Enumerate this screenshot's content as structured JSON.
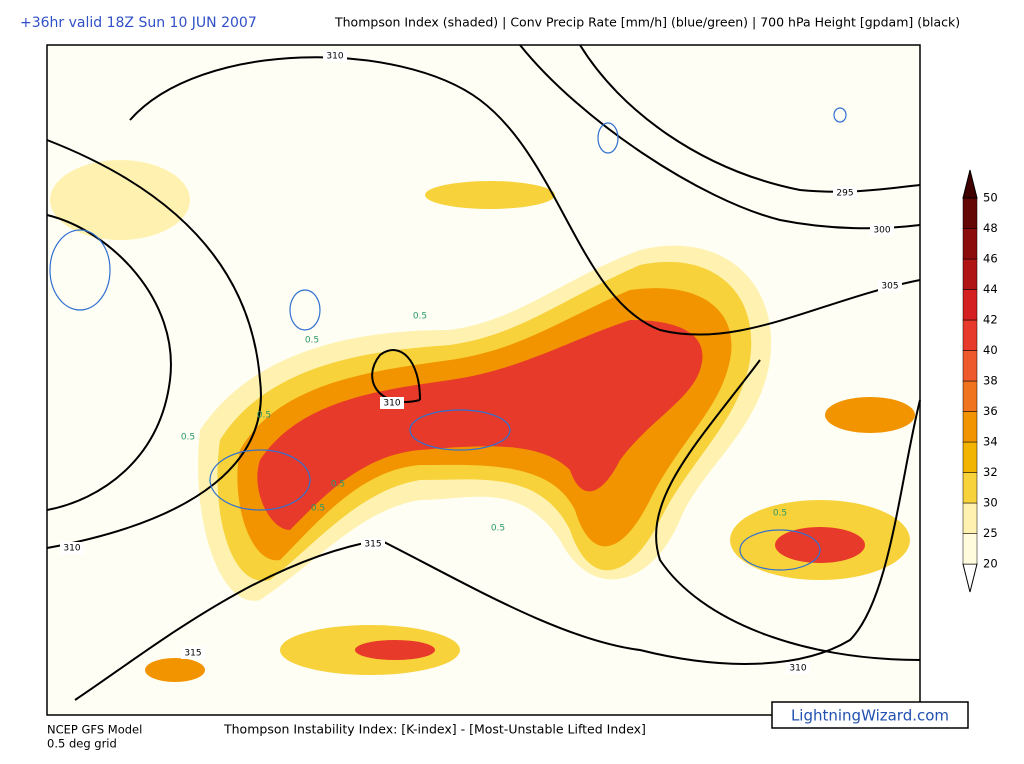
{
  "header": {
    "valid_time": "+36hr valid 18Z Sun 10 JUN 2007",
    "fields": "Thompson Index (shaded) | Conv Precip Rate [mm/h] (blue/green) | 700 hPa Height [gpdam] (black)"
  },
  "colorbar": {
    "levels": [
      20,
      25,
      30,
      32,
      34,
      36,
      38,
      40,
      42,
      44,
      46,
      48,
      50
    ],
    "colors": [
      "#fffbdc",
      "#fff2b0",
      "#f7d23a",
      "#f2b400",
      "#f29400",
      "#f07420",
      "#ee5a2c",
      "#e83a2a",
      "#d42020",
      "#b01414",
      "#8c0c0c",
      "#640606"
    ]
  },
  "height_contour_labels": [
    310,
    295,
    300,
    305,
    310,
    310,
    315,
    315,
    310
  ],
  "precip_contour_labels": [
    "0.5",
    "0.5",
    "0.5",
    "0.5",
    "0.5",
    "0.5",
    "0.5",
    "0.5"
  ],
  "footer": {
    "model": "NCEP GFS Model",
    "grid": "0.5 deg grid",
    "index": "Thompson Instability Index: [K-index] - [Most-Unstable Lifted Index]",
    "watermark": "LightningWizard.com"
  }
}
